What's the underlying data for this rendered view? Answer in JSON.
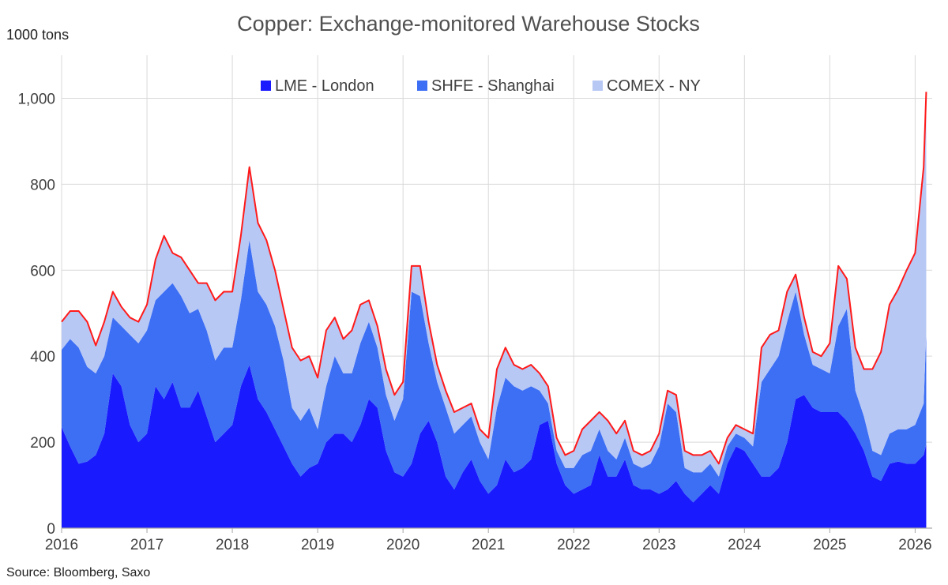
{
  "chart_data": {
    "type": "area",
    "title": "Copper: Exchange-monitored Warehouse Stocks",
    "ylabel": "1000 tons",
    "source": "Source: Bloomberg, Saxo",
    "ylim": [
      0,
      1100
    ],
    "xlim": [
      2016.0,
      2026.2
    ],
    "yticks": [
      0,
      200,
      400,
      600,
      800,
      1000
    ],
    "ytick_labels": [
      "0",
      "200",
      "400",
      "600",
      "800",
      "1,000"
    ],
    "xticks": [
      2016,
      2017,
      2018,
      2019,
      2020,
      2021,
      2022,
      2023,
      2024,
      2025,
      2026
    ],
    "xtick_labels": [
      "2016",
      "2017",
      "2018",
      "2019",
      "2020",
      "2021",
      "2022",
      "2023",
      "2024",
      "2025",
      "2026"
    ],
    "colors": {
      "lme": "#1a1aff",
      "shfe": "#3d6ff5",
      "comex": "#b8c8f5",
      "total_line": "#ff1a1a",
      "grid": "#d9d9d9",
      "axis": "#a6a6a6"
    },
    "legend": [
      {
        "name": "LME - London",
        "color": "#1a1aff"
      },
      {
        "name": "SHFE - Shanghai",
        "color": "#3d6ff5"
      },
      {
        "name": "COMEX - NY",
        "color": "#b8c8f5"
      }
    ],
    "x": [
      2016.0,
      2016.1,
      2016.2,
      2016.3,
      2016.4,
      2016.5,
      2016.6,
      2016.7,
      2016.8,
      2016.9,
      2017.0,
      2017.1,
      2017.2,
      2017.3,
      2017.4,
      2017.5,
      2017.6,
      2017.7,
      2017.8,
      2017.9,
      2018.0,
      2018.1,
      2018.2,
      2018.3,
      2018.4,
      2018.5,
      2018.6,
      2018.7,
      2018.8,
      2018.9,
      2019.0,
      2019.1,
      2019.2,
      2019.3,
      2019.4,
      2019.5,
      2019.6,
      2019.7,
      2019.8,
      2019.9,
      2020.0,
      2020.1,
      2020.2,
      2020.3,
      2020.4,
      2020.5,
      2020.6,
      2020.7,
      2020.8,
      2020.9,
      2021.0,
      2021.1,
      2021.2,
      2021.3,
      2021.4,
      2021.5,
      2021.6,
      2021.7,
      2021.8,
      2021.9,
      2022.0,
      2022.1,
      2022.2,
      2022.3,
      2022.4,
      2022.5,
      2022.6,
      2022.7,
      2022.8,
      2022.9,
      2023.0,
      2023.1,
      2023.2,
      2023.3,
      2023.4,
      2023.5,
      2023.6,
      2023.7,
      2023.8,
      2023.9,
      2024.0,
      2024.1,
      2024.2,
      2024.3,
      2024.4,
      2024.5,
      2024.6,
      2024.7,
      2024.8,
      2024.9,
      2025.0,
      2025.1,
      2025.2,
      2025.3,
      2025.4,
      2025.5,
      2025.6,
      2025.7,
      2025.8,
      2025.9,
      2026.0,
      2026.1,
      2026.13
    ],
    "series": [
      {
        "name": "LME - London",
        "values": [
          235,
          190,
          150,
          155,
          170,
          220,
          360,
          330,
          240,
          200,
          220,
          330,
          300,
          340,
          280,
          280,
          320,
          260,
          200,
          220,
          240,
          330,
          380,
          300,
          270,
          230,
          190,
          150,
          120,
          140,
          150,
          200,
          220,
          220,
          200,
          240,
          300,
          280,
          180,
          130,
          120,
          150,
          220,
          250,
          200,
          120,
          90,
          130,
          160,
          110,
          80,
          100,
          160,
          130,
          140,
          160,
          240,
          250,
          150,
          100,
          80,
          90,
          100,
          170,
          120,
          120,
          160,
          100,
          90,
          90,
          80,
          90,
          110,
          80,
          60,
          80,
          100,
          80,
          150,
          190,
          180,
          150,
          120,
          120,
          140,
          200,
          300,
          310,
          280,
          270,
          270,
          270,
          250,
          220,
          180,
          120,
          110,
          150,
          155,
          150,
          150,
          170,
          195
        ]
      },
      {
        "name": "SHFE - Shanghai",
        "values": [
          180,
          250,
          270,
          220,
          190,
          180,
          130,
          140,
          210,
          230,
          240,
          200,
          250,
          230,
          260,
          220,
          190,
          200,
          190,
          200,
          180,
          200,
          290,
          250,
          250,
          240,
          200,
          130,
          130,
          140,
          80,
          130,
          180,
          140,
          160,
          190,
          180,
          140,
          130,
          120,
          180,
          400,
          320,
          180,
          140,
          160,
          130,
          110,
          100,
          90,
          80,
          180,
          190,
          200,
          180,
          170,
          80,
          40,
          30,
          40,
          60,
          80,
          80,
          60,
          60,
          40,
          50,
          50,
          50,
          60,
          110,
          200,
          160,
          60,
          70,
          50,
          50,
          40,
          40,
          30,
          30,
          40,
          220,
          250,
          260,
          280,
          250,
          140,
          100,
          100,
          90,
          200,
          260,
          100,
          80,
          60,
          60,
          70,
          75,
          80,
          90,
          120,
          260
        ]
      },
      {
        "name": "COMEX - NY",
        "values": [
          65,
          65,
          85,
          105,
          65,
          80,
          60,
          45,
          40,
          50,
          60,
          95,
          130,
          70,
          90,
          100,
          60,
          110,
          140,
          130,
          130,
          150,
          170,
          160,
          150,
          130,
          120,
          140,
          140,
          120,
          120,
          130,
          90,
          80,
          100,
          90,
          50,
          50,
          60,
          60,
          40,
          60,
          70,
          50,
          40,
          40,
          50,
          40,
          30,
          30,
          50,
          90,
          70,
          50,
          50,
          50,
          40,
          40,
          30,
          30,
          40,
          60,
          70,
          40,
          70,
          60,
          40,
          30,
          30,
          30,
          30,
          30,
          40,
          40,
          40,
          40,
          30,
          30,
          20,
          20,
          20,
          30,
          80,
          80,
          60,
          70,
          40,
          40,
          30,
          30,
          70,
          140,
          70,
          100,
          110,
          190,
          240,
          300,
          325,
          370,
          400,
          550,
          560
        ]
      }
    ]
  }
}
